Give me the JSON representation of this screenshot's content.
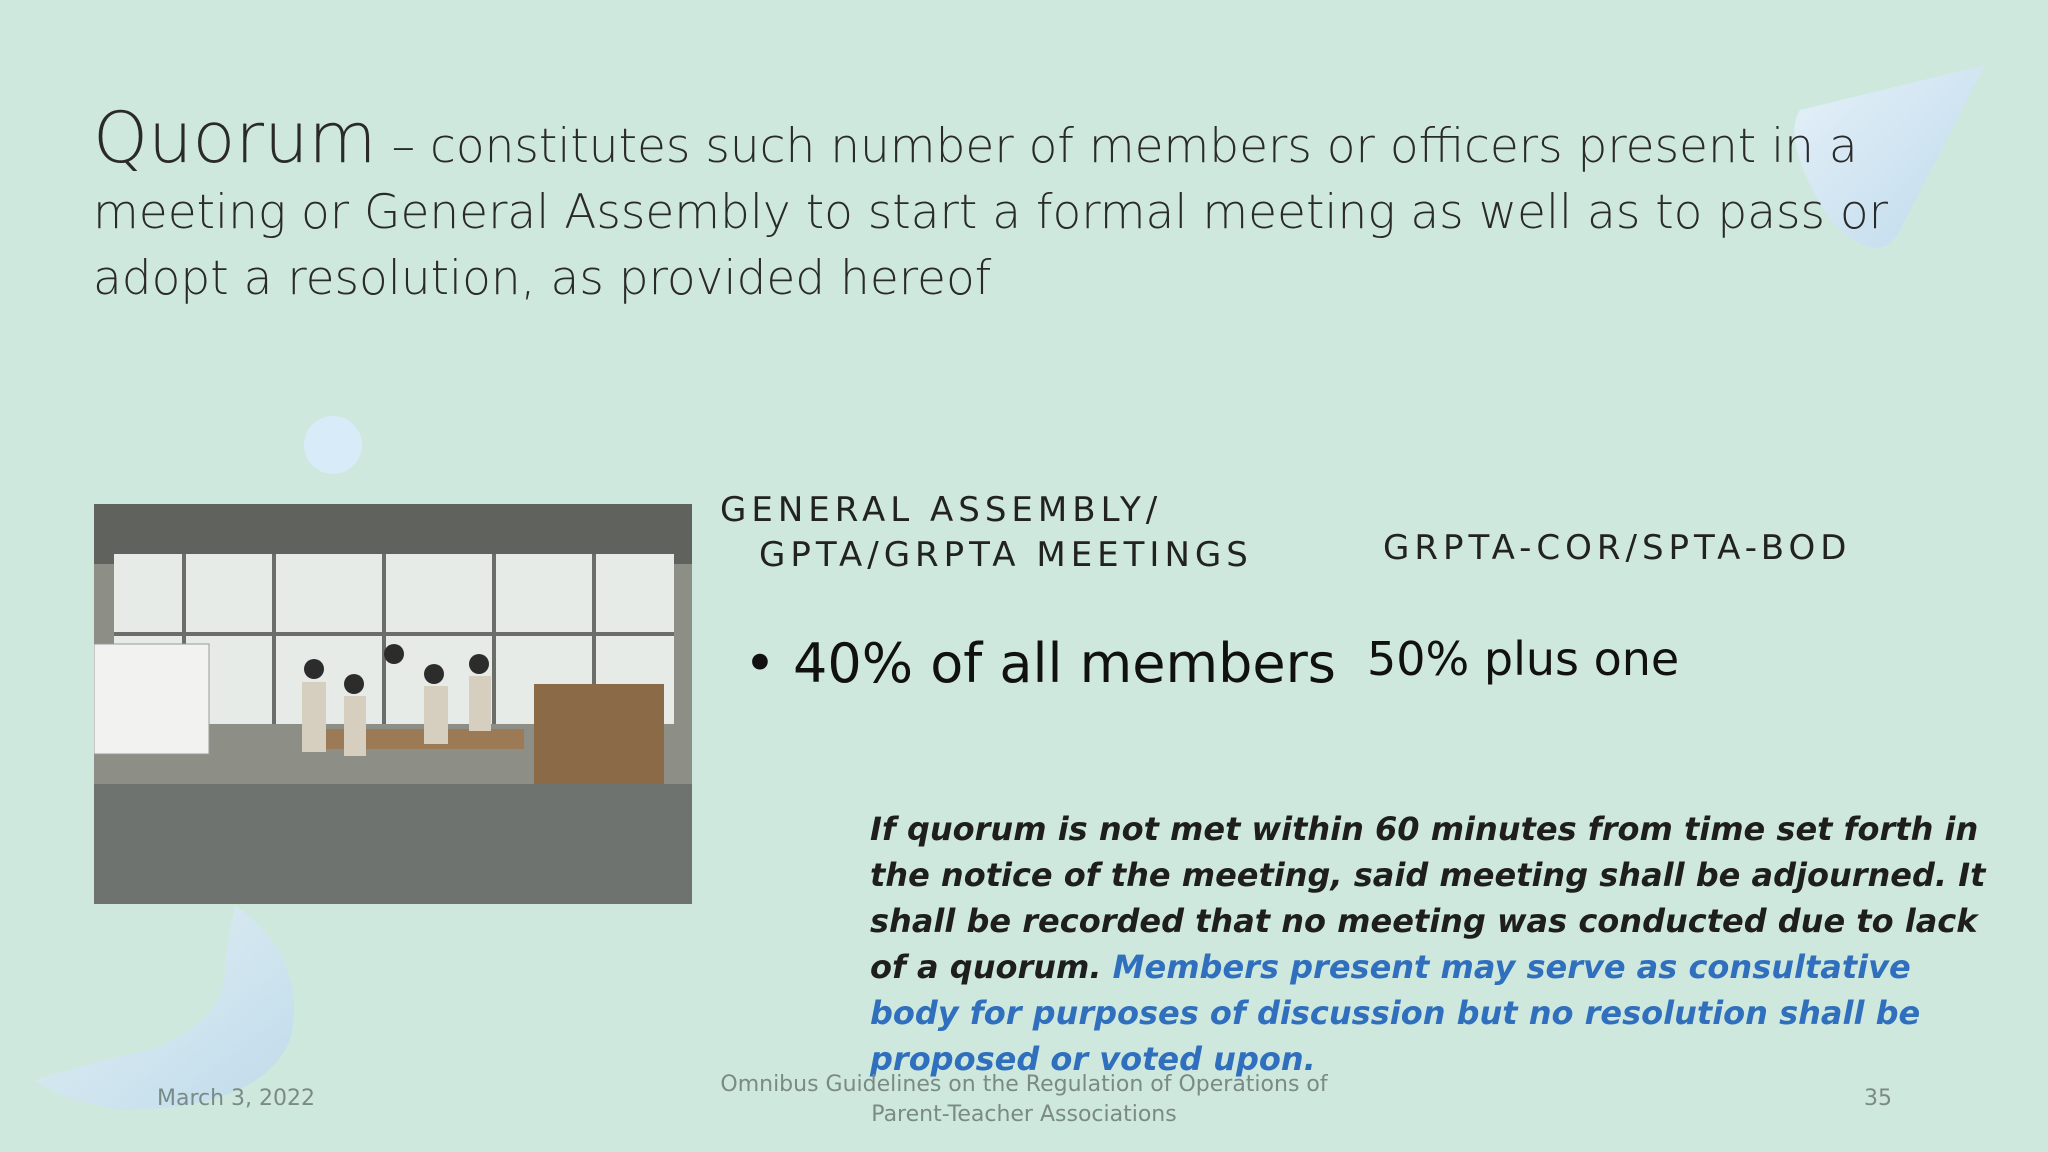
{
  "slide": {
    "title": {
      "term": "Quorum",
      "definition": "– constitutes such number of members or officers present in a meeting or General Assembly to start a formal meeting as well as to pass or adopt a resolution, as provided hereof"
    },
    "columns": [
      {
        "heading_lines": [
          "GENERAL ASSEMBLY/",
          "GPTA/GRPTA MEETINGS"
        ],
        "value": "• 40% of all members"
      },
      {
        "heading_lines": [
          "GRPTA-COR/SPTA-BOD"
        ],
        "value": "50% plus one"
      }
    ],
    "note": {
      "text": "If quorum is not met within 60 minutes from time set forth in the notice of the meeting, said meeting shall be adjourned. It shall be recorded that no meeting was conducted due to lack of a quorum.",
      "highlight": "Members present may serve as consultative body for purposes of discussion but no resolution shall be proposed or voted upon."
    },
    "footer": {
      "date": "March 3, 2022",
      "center": "Omnibus Guidelines on the Regulation of Operations of Parent-Teacher Associations",
      "page": "35"
    }
  }
}
